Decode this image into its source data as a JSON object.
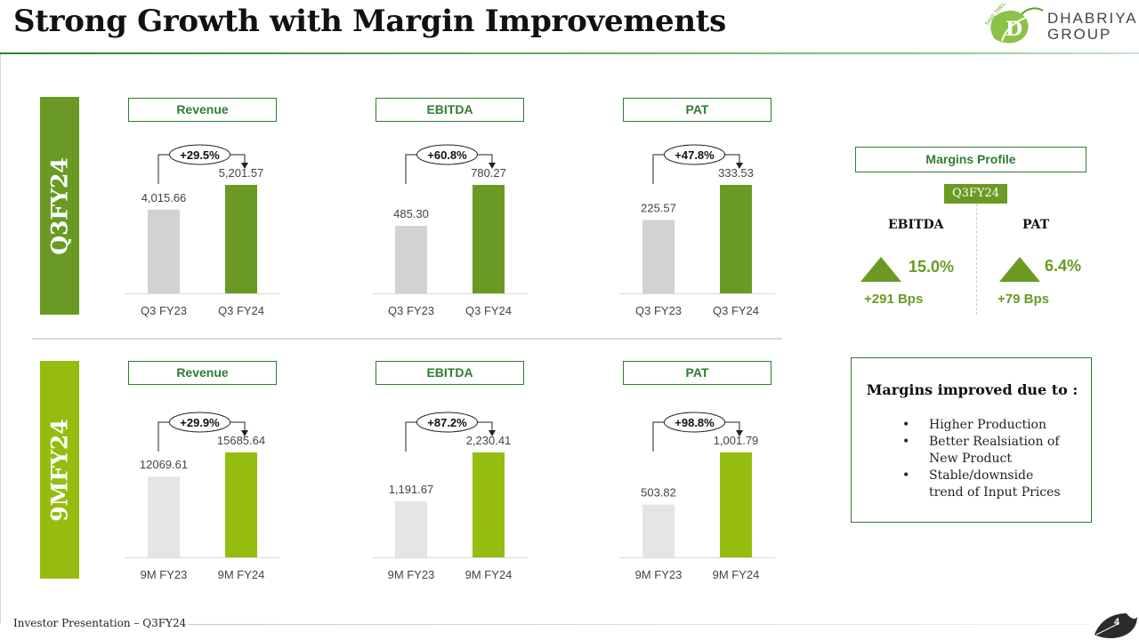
{
  "title": "Strong Growth with Margin Improvements",
  "logo": {
    "line1": "DHABRIYA",
    "line2": "GROUP",
    "tagline": "SAVE TREES"
  },
  "side_labels": [
    "Q3FY24",
    "9MFY24"
  ],
  "colors": {
    "dark_green": "#6a9a23",
    "light_green": "#95bd10",
    "prior_gray_q3": "#d2d2d2",
    "prior_gray_9m": "#e5e5e5",
    "border_green": "#2e7d32"
  },
  "chart_data": [
    {
      "type": "bar",
      "title": "Revenue",
      "categories": [
        "Q3 FY23",
        "Q3 FY24"
      ],
      "values": [
        4015.66,
        5201.57
      ],
      "value_labels": [
        "4,015.66",
        "5,201.57"
      ],
      "growth": "+29.5%"
    },
    {
      "type": "bar",
      "title": "EBITDA",
      "categories": [
        "Q3 FY23",
        "Q3 FY24"
      ],
      "values": [
        485.3,
        780.27
      ],
      "value_labels": [
        "485.30",
        "780.27"
      ],
      "growth": "+60.8%"
    },
    {
      "type": "bar",
      "title": "PAT",
      "categories": [
        "Q3 FY23",
        "Q3 FY24"
      ],
      "values": [
        225.57,
        333.53
      ],
      "value_labels": [
        "225.57",
        "333.53"
      ],
      "growth": "+47.8%"
    },
    {
      "type": "bar",
      "title": "Revenue",
      "categories": [
        "9M FY23",
        "9M FY24"
      ],
      "values": [
        12069.61,
        15685.64
      ],
      "value_labels": [
        "12069.61",
        "15685.64"
      ],
      "growth": "+29.9%"
    },
    {
      "type": "bar",
      "title": "EBITDA",
      "categories": [
        "9M FY23",
        "9M FY24"
      ],
      "values": [
        1191.67,
        2230.41
      ],
      "value_labels": [
        "1,191.67",
        "2,230.41"
      ],
      "growth": "+87.2%"
    },
    {
      "type": "bar",
      "title": "PAT",
      "categories": [
        "9M FY23",
        "9M FY24"
      ],
      "values": [
        503.82,
        1001.79
      ],
      "value_labels": [
        "503.82",
        "1,001.79"
      ],
      "growth": "+98.8%"
    }
  ],
  "margins_profile": {
    "title": "Margins Profile",
    "period": "Q3FY24",
    "ebitda": {
      "label": "EBITDA",
      "value": "15.0%",
      "change": "+291 Bps"
    },
    "pat": {
      "label": "PAT",
      "value": "6.4%",
      "change": "+79 Bps"
    }
  },
  "reasons": {
    "title": "Margins improved due to :",
    "items": [
      "Higher Production",
      "Better Realsiation of New Product",
      "Stable/downside trend of Input Prices"
    ]
  },
  "footer": {
    "text": "Investor Presentation – Q3FY24",
    "page": "4"
  }
}
